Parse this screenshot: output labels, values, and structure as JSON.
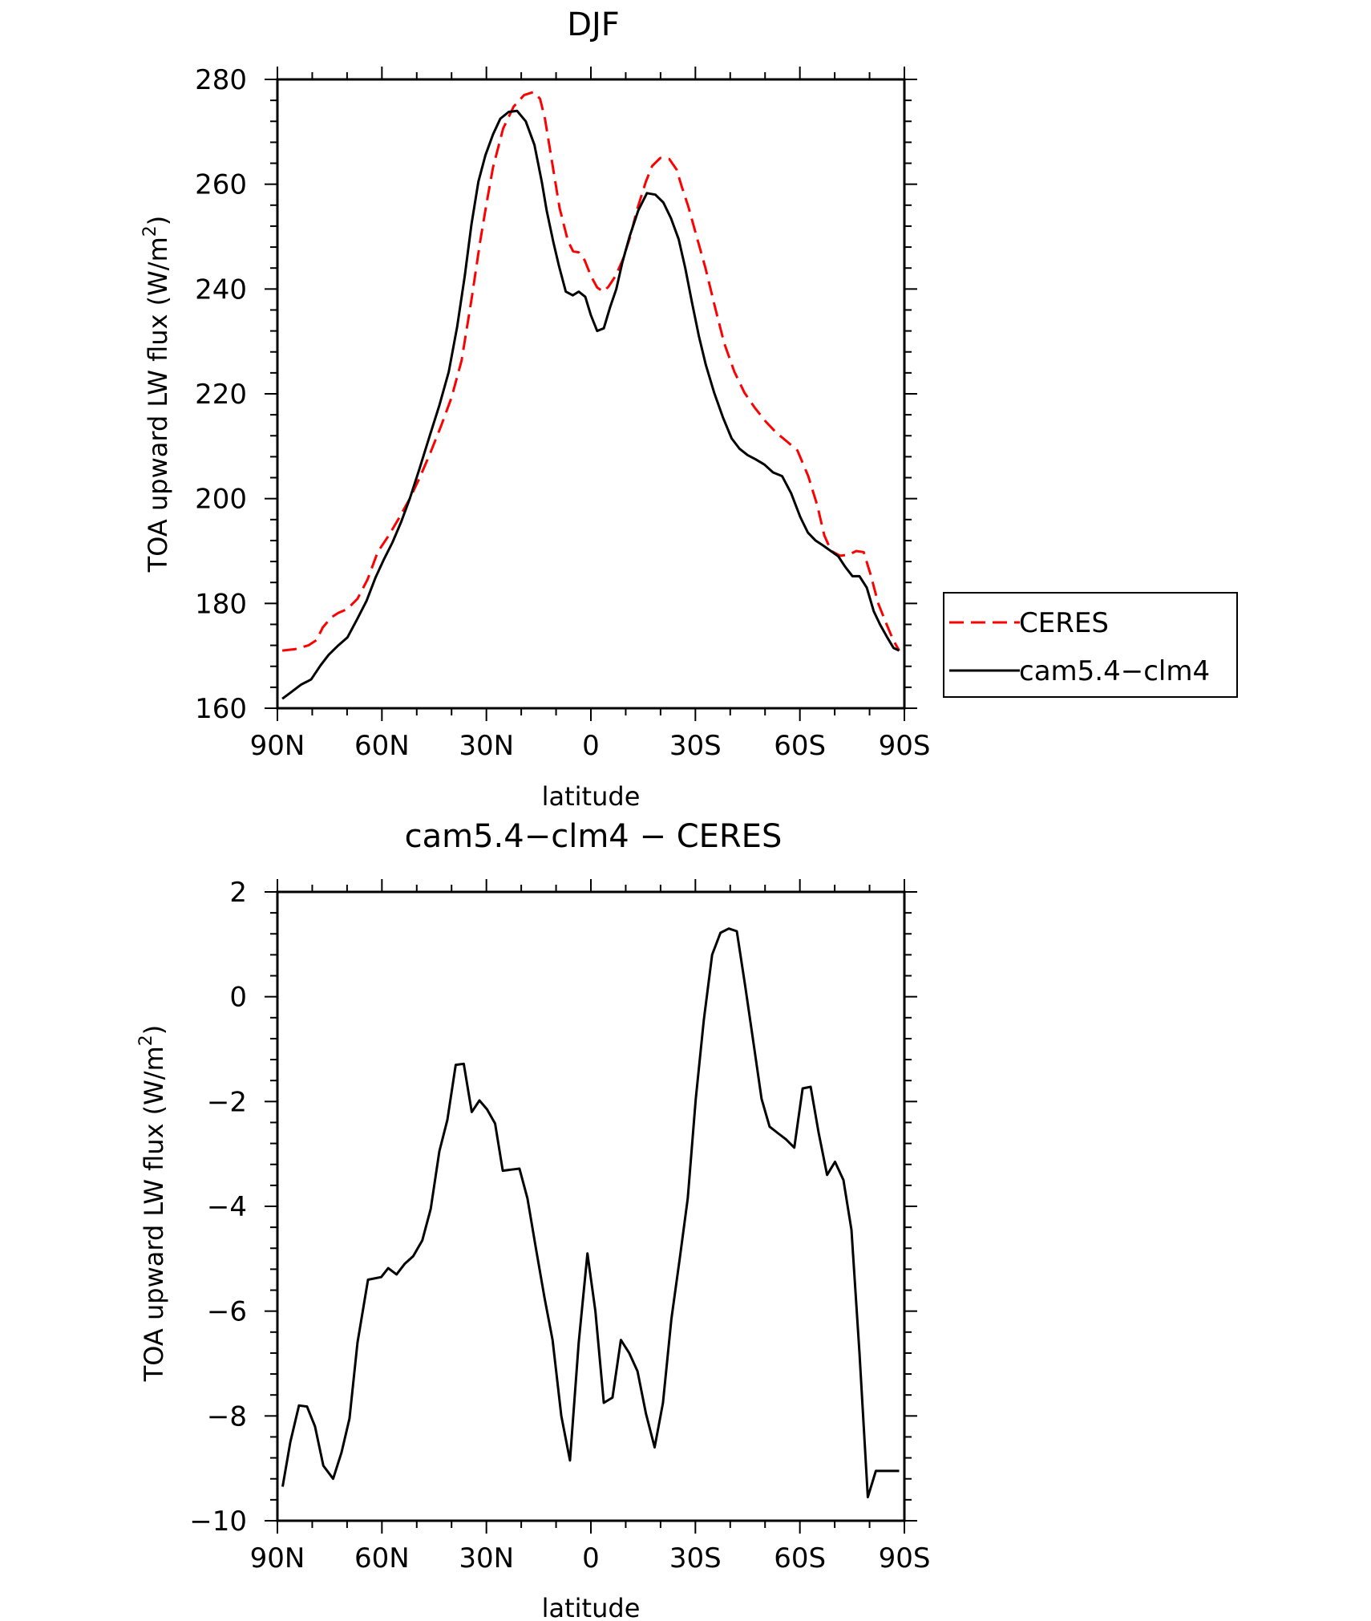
{
  "chart_data": [
    {
      "type": "line",
      "title": "DJF",
      "xlabel": "latitude",
      "ylabel": "TOA upward LW flux (W/m²)",
      "ylabel_parts": {
        "main": "TOA upward LW flux (W/m",
        "sup": "2",
        "end": ")"
      },
      "xlim": [
        90,
        -90
      ],
      "ylim": [
        160,
        280
      ],
      "x_ticks": [
        {
          "value": 90,
          "label": "90N"
        },
        {
          "value": 60,
          "label": "60N"
        },
        {
          "value": 30,
          "label": "30N"
        },
        {
          "value": 0,
          "label": "0"
        },
        {
          "value": -30,
          "label": "30S"
        },
        {
          "value": -60,
          "label": "60S"
        },
        {
          "value": -90,
          "label": "90S"
        }
      ],
      "y_ticks": [
        {
          "value": 160,
          "label": "160"
        },
        {
          "value": 180,
          "label": "180"
        },
        {
          "value": 200,
          "label": "200"
        },
        {
          "value": 220,
          "label": "220"
        },
        {
          "value": 240,
          "label": "240"
        },
        {
          "value": 260,
          "label": "260"
        },
        {
          "value": 280,
          "label": "280"
        }
      ],
      "legend_position": "right",
      "series": [
        {
          "name": "CERES",
          "color": "#ff0000",
          "dash": true,
          "x": [
            88.6,
            84.8,
            81.1,
            78.8,
            77.0,
            74.6,
            72.5,
            70.0,
            67.0,
            64.1,
            61.2,
            58.0,
            55.0,
            52.0,
            49.0,
            46.0,
            43.0,
            40.0,
            37.1,
            34.2,
            31.8,
            30.0,
            28.1,
            25.2,
            22.2,
            19.2,
            16.5,
            14.6,
            13.2,
            11.1,
            9.0,
            6.6,
            5.1,
            3.5,
            1.8,
            0.0,
            -1.8,
            -3.5,
            -5.0,
            -7.1,
            -9.1,
            -11.3,
            -13.2,
            -15.8,
            -17.6,
            -19.9,
            -22.5,
            -24.6,
            -26.1,
            -28.0,
            -30.2,
            -32.9,
            -35.6,
            -38.3,
            -41.2,
            -44.1,
            -47.1,
            -50.2,
            -53.2,
            -56.3,
            -59.3,
            -62.4,
            -65.0,
            -67.0,
            -69.0,
            -71.6,
            -74.0,
            -76.2,
            -78.3,
            -80.3,
            -82.5,
            -84.6,
            -86.8,
            -88.5
          ],
          "y": [
            171.0,
            171.3,
            172.0,
            173.0,
            175.4,
            177.3,
            178.2,
            178.9,
            180.9,
            184.6,
            189.8,
            193.0,
            196.4,
            200.0,
            204.2,
            208.9,
            213.9,
            219.3,
            226.4,
            238.3,
            249.0,
            256.2,
            263.2,
            270.6,
            274.8,
            277.0,
            277.6,
            276.3,
            272.5,
            264.0,
            255.5,
            249.2,
            247.2,
            247.0,
            245.5,
            242.5,
            240.3,
            239.5,
            240.4,
            242.5,
            245.5,
            250.0,
            255.0,
            260.5,
            263.5,
            265.0,
            264.8,
            262.8,
            259.5,
            255.7,
            250.4,
            244.0,
            236.6,
            229.6,
            224.2,
            220.2,
            217.3,
            214.7,
            212.6,
            210.9,
            209.2,
            204.3,
            198.7,
            193.0,
            190.0,
            189.1,
            189.3,
            190.0,
            189.8,
            185.5,
            180.0,
            176.5,
            173.0,
            171.0
          ]
        },
        {
          "name": "cam5.4−clm4",
          "color": "#000000",
          "dash": false,
          "x": [
            88.6,
            86.2,
            83.2,
            80.3,
            77.6,
            75.3,
            72.5,
            69.9,
            67.1,
            64.4,
            61.8,
            59.5,
            57.0,
            54.5,
            52.0,
            49.3,
            46.4,
            43.5,
            40.8,
            38.4,
            36.2,
            34.3,
            32.3,
            30.3,
            28.1,
            26.0,
            23.6,
            21.2,
            18.7,
            16.2,
            14.1,
            12.7,
            10.8,
            9.2,
            7.2,
            5.2,
            3.5,
            1.6,
            0.0,
            -1.8,
            -3.7,
            -5.5,
            -7.3,
            -9.0,
            -11.1,
            -13.6,
            -16.1,
            -18.5,
            -20.8,
            -23.0,
            -25.2,
            -27.1,
            -29.0,
            -31.0,
            -33.0,
            -35.4,
            -37.9,
            -40.4,
            -42.7,
            -45.0,
            -47.3,
            -49.8,
            -52.3,
            -54.9,
            -57.5,
            -60.1,
            -62.3,
            -64.5,
            -66.8,
            -68.9,
            -71.0,
            -73.0,
            -75.1,
            -77.1,
            -79.2,
            -81.2,
            -83.0,
            -85.1,
            -86.9,
            -88.5
          ],
          "y": [
            161.8,
            163.0,
            164.5,
            165.5,
            168.2,
            170.2,
            172.0,
            173.5,
            177.0,
            180.5,
            185.0,
            188.3,
            191.6,
            195.5,
            200.0,
            205.5,
            211.7,
            217.8,
            224.2,
            232.8,
            242.5,
            252.3,
            260.5,
            265.5,
            269.5,
            272.5,
            273.8,
            274.0,
            272.0,
            267.5,
            260.5,
            255.0,
            249.0,
            244.5,
            239.5,
            238.8,
            239.5,
            238.5,
            235.0,
            232.0,
            232.5,
            236.5,
            240.0,
            245.0,
            250.0,
            255.0,
            258.3,
            258.0,
            256.5,
            253.5,
            249.5,
            244.0,
            237.5,
            231.0,
            225.5,
            220.2,
            215.5,
            211.5,
            209.5,
            208.3,
            207.5,
            206.5,
            205.0,
            204.3,
            201.0,
            196.5,
            193.5,
            192.0,
            191.0,
            190.0,
            189.0,
            187.0,
            185.2,
            185.2,
            183.0,
            178.5,
            176.0,
            173.5,
            171.5,
            171.0
          ]
        }
      ]
    },
    {
      "type": "line",
      "title": "cam5.4−clm4 − CERES",
      "xlabel": "latitude",
      "ylabel": "TOA upward LW flux (W/m²)",
      "ylabel_parts": {
        "main": "TOA upward LW flux (W/m",
        "sup": "2",
        "end": ")"
      },
      "xlim": [
        90,
        -90
      ],
      "ylim": [
        -10,
        2
      ],
      "x_ticks": [
        {
          "value": 90,
          "label": "90N"
        },
        {
          "value": 60,
          "label": "60N"
        },
        {
          "value": 30,
          "label": "30N"
        },
        {
          "value": 0,
          "label": "0"
        },
        {
          "value": -30,
          "label": "30S"
        },
        {
          "value": -60,
          "label": "60S"
        },
        {
          "value": -90,
          "label": "90S"
        }
      ],
      "y_ticks": [
        {
          "value": -10,
          "label": "−10"
        },
        {
          "value": -8,
          "label": "−8"
        },
        {
          "value": -6,
          "label": "−6"
        },
        {
          "value": -4,
          "label": "−4"
        },
        {
          "value": -2,
          "label": "−2"
        },
        {
          "value": 0,
          "label": "0"
        },
        {
          "value": 2,
          "label": "2"
        }
      ],
      "series": [
        {
          "name": "",
          "color": "#000000",
          "dash": false,
          "x": [
            88.5,
            86.3,
            83.8,
            81.5,
            79.2,
            76.8,
            74.0,
            71.6,
            69.3,
            67.0,
            64.0,
            60.2,
            58.2,
            55.8,
            53.5,
            51.0,
            48.4,
            46.0,
            43.5,
            41.2,
            38.8,
            36.5,
            34.2,
            32.0,
            29.8,
            27.5,
            25.3,
            23.0,
            20.5,
            18.2,
            15.8,
            13.3,
            11.0,
            8.5,
            6.0,
            3.5,
            1.0,
            -1.3,
            -3.7,
            -6.2,
            -8.6,
            -11.0,
            -13.4,
            -15.8,
            -18.3,
            -20.7,
            -23.1,
            -25.5,
            -27.8,
            -30.1,
            -32.4,
            -34.8,
            -37.2,
            -39.6,
            -41.9,
            -44.3,
            -46.6,
            -49.0,
            -51.3,
            -53.6,
            -56.0,
            -58.4,
            -60.8,
            -63.1,
            -65.4,
            -67.8,
            -70.1,
            -72.5,
            -74.8,
            -77.1,
            -79.5,
            -81.8,
            -84.1,
            -86.4,
            -88.5
          ],
          "y": [
            -9.35,
            -8.5,
            -7.8,
            -7.82,
            -8.2,
            -8.95,
            -9.2,
            -8.7,
            -8.05,
            -6.6,
            -5.4,
            -5.35,
            -5.18,
            -5.3,
            -5.1,
            -4.95,
            -4.65,
            -4.05,
            -2.95,
            -2.35,
            -1.3,
            -1.28,
            -2.2,
            -1.98,
            -2.15,
            -2.42,
            -3.32,
            -3.3,
            -3.28,
            -3.85,
            -4.8,
            -5.75,
            -6.55,
            -8.0,
            -8.85,
            -6.6,
            -4.9,
            -6.0,
            -7.75,
            -7.65,
            -6.55,
            -6.8,
            -7.15,
            -7.95,
            -8.6,
            -7.75,
            -6.15,
            -5.0,
            -3.85,
            -1.95,
            -0.45,
            0.8,
            1.22,
            1.3,
            1.25,
            0.2,
            -0.85,
            -1.95,
            -2.48,
            -2.6,
            -2.72,
            -2.88,
            -1.75,
            -1.72,
            -2.6,
            -3.4,
            -3.15,
            -3.5,
            -4.45,
            -6.8,
            -9.55,
            -9.05,
            -9.05,
            -9.05,
            -9.05
          ]
        }
      ]
    }
  ]
}
